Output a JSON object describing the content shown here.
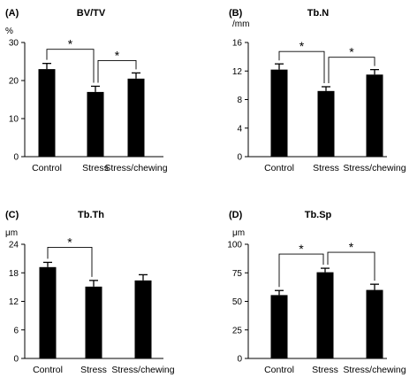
{
  "chart_data": [
    {
      "type": "bar",
      "panel_label": "(A)",
      "title": "BV/TV",
      "unit": "%",
      "categories": [
        "Control",
        "Stress",
        "Stress/chewing"
      ],
      "values": [
        23,
        17,
        20.5
      ],
      "errors": [
        1.5,
        1.5,
        1.5
      ],
      "ylim": [
        0,
        30
      ],
      "yticks": [
        "0",
        "10",
        "20",
        "30"
      ],
      "significance": [
        {
          "from": 0,
          "to": 1,
          "label": "*"
        },
        {
          "from": 1,
          "to": 2,
          "label": "*"
        }
      ]
    },
    {
      "type": "bar",
      "panel_label": "(B)",
      "title": "Tb.N",
      "unit": "/mm",
      "categories": [
        "Control",
        "Stress",
        "Stress/chewing"
      ],
      "values": [
        12.2,
        9.2,
        11.5
      ],
      "errors": [
        0.8,
        0.6,
        0.7
      ],
      "ylim": [
        0,
        16
      ],
      "yticks": [
        "0",
        "4",
        "8",
        "12",
        "16"
      ],
      "significance": [
        {
          "from": 0,
          "to": 1,
          "label": "*"
        },
        {
          "from": 1,
          "to": 2,
          "label": "*"
        }
      ]
    },
    {
      "type": "bar",
      "panel_label": "(C)",
      "title": "Tb.Th",
      "unit": "μm",
      "categories": [
        "Control",
        "Stress",
        "Stress/chewing"
      ],
      "values": [
        19.2,
        15.1,
        16.4
      ],
      "errors": [
        1.0,
        1.3,
        1.2
      ],
      "ylim": [
        0,
        24
      ],
      "yticks": [
        "0",
        "6",
        "12",
        "18",
        "24"
      ],
      "significance": [
        {
          "from": 0,
          "to": 1,
          "label": "*"
        }
      ]
    },
    {
      "type": "bar",
      "panel_label": "(D)",
      "title": "Tb.Sp",
      "unit": "μm",
      "categories": [
        "Control",
        "Stress",
        "Stress/chewing"
      ],
      "values": [
        55.5,
        75.5,
        60
      ],
      "errors": [
        4,
        3.5,
        5
      ],
      "ylim": [
        0,
        100
      ],
      "yticks": [
        "0",
        "25",
        "50",
        "75",
        "100"
      ],
      "significance": [
        {
          "from": 0,
          "to": 1,
          "label": "*"
        },
        {
          "from": 1,
          "to": 2,
          "label": "*"
        }
      ]
    }
  ]
}
